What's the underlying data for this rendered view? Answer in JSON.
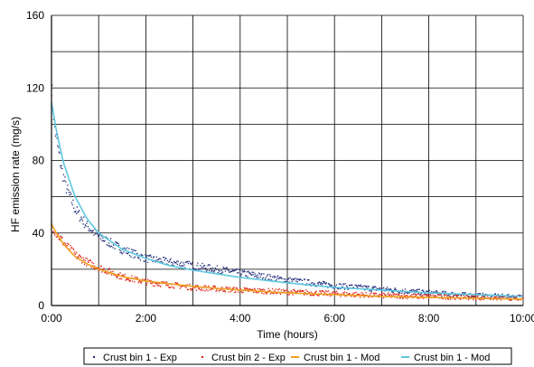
{
  "chart_data": {
    "type": "scatter",
    "title": "",
    "xlabel": "Time (hours)",
    "ylabel": "HF emission rate (mg/s)",
    "xlim": [
      0,
      10
    ],
    "ylim": [
      0,
      160
    ],
    "x_ticks": [
      0,
      2,
      4,
      6,
      8,
      10
    ],
    "x_tick_labels": [
      "0:00",
      "2:00",
      "4:00",
      "6:00",
      "8:00",
      "10:00"
    ],
    "y_ticks": [
      0,
      40,
      80,
      120,
      160
    ],
    "y_tick_labels": [
      "0",
      "40",
      "80",
      "120",
      "160"
    ],
    "grid": true,
    "grid_x_step": 1,
    "grid_y_step": 20,
    "legend_position": "bottom",
    "series": [
      {
        "name": "Crust bin 1 - Exp",
        "style": "dots",
        "color": "#1f2a7a",
        "x": [
          0,
          0.05,
          0.1,
          0.2,
          0.3,
          0.5,
          0.75,
          1,
          1.5,
          2,
          2.5,
          3,
          3.5,
          4,
          5,
          6,
          7,
          8,
          9,
          10
        ],
        "y": [
          122,
          103,
          92,
          77,
          66,
          53,
          44,
          38,
          31,
          26,
          24,
          22,
          20,
          18,
          14,
          11,
          9,
          7,
          5.5,
          4.5
        ]
      },
      {
        "name": "Crust bin 2 - Exp",
        "style": "dots",
        "color": "#e02010",
        "x": [
          0,
          0.1,
          0.25,
          0.5,
          0.75,
          1,
          1.5,
          2,
          2.5,
          3,
          4,
          5,
          6,
          7,
          8,
          9,
          10
        ],
        "y": [
          45,
          40,
          35,
          28,
          24,
          21,
          16,
          13,
          11.5,
          10,
          8.5,
          7.5,
          6.5,
          5.5,
          5,
          4.5,
          4
        ]
      },
      {
        "name": "Crust bin 1 - Mod",
        "style": "line",
        "color": "#f0a020",
        "x": [
          0,
          0.1,
          0.25,
          0.5,
          0.75,
          1,
          1.5,
          2,
          2.5,
          3,
          4,
          5,
          6,
          7,
          8,
          9,
          10
        ],
        "y": [
          45,
          40,
          34,
          27,
          23,
          20,
          16,
          13.5,
          12,
          10.5,
          8.5,
          7,
          6,
          5,
          4.5,
          4,
          3.5
        ]
      },
      {
        "name": "Crust bin 1 - Mod",
        "style": "line",
        "color": "#5ec8e0",
        "x": [
          0,
          0.1,
          0.25,
          0.5,
          0.75,
          1,
          1.5,
          2,
          2.5,
          3,
          3.5,
          4,
          5,
          6,
          7,
          8,
          9,
          10
        ],
        "y": [
          112,
          97,
          79,
          60,
          48,
          40,
          31,
          26,
          22,
          19.5,
          17.5,
          15.5,
          12.5,
          10,
          8.5,
          7,
          6,
          5
        ]
      }
    ]
  }
}
